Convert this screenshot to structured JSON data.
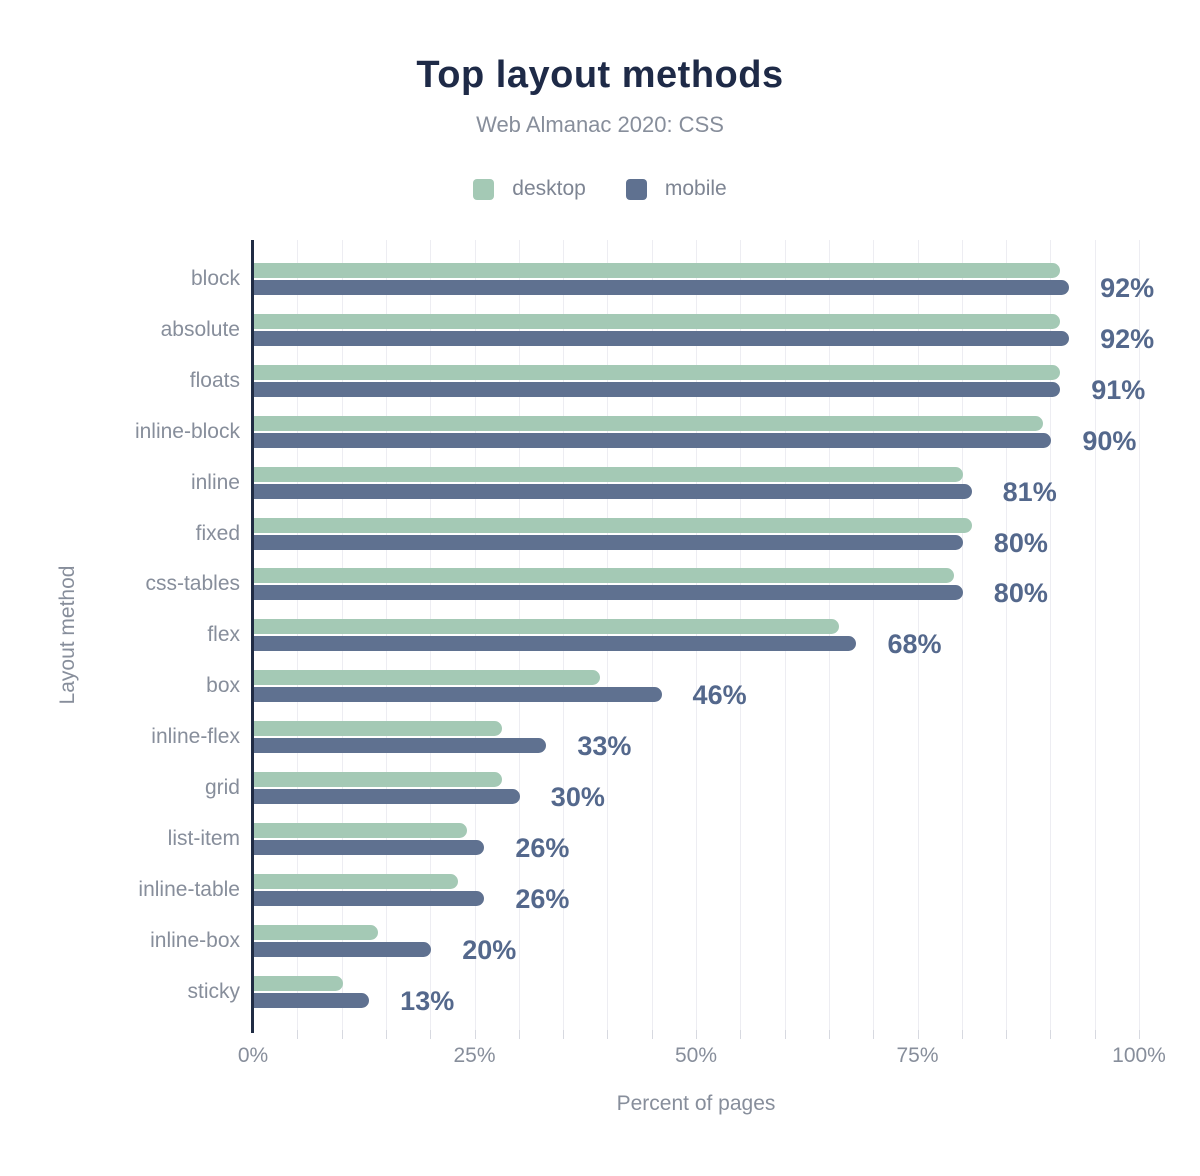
{
  "chart_data": {
    "type": "bar",
    "orientation": "horizontal",
    "title": "Top layout methods",
    "subtitle": "Web Almanac 2020: CSS",
    "xlabel": "Percent of pages",
    "ylabel": "Layout method",
    "categories": [
      "block",
      "absolute",
      "floats",
      "inline-block",
      "inline",
      "fixed",
      "css-tables",
      "flex",
      "box",
      "inline-flex",
      "grid",
      "list-item",
      "inline-table",
      "inline-box",
      "sticky"
    ],
    "series": [
      {
        "name": "desktop",
        "color": "#a4c9b5",
        "values": [
          91,
          91,
          91,
          89,
          80,
          81,
          79,
          66,
          39,
          28,
          28,
          24,
          23,
          14,
          10
        ]
      },
      {
        "name": "mobile",
        "color": "#5f7190",
        "values": [
          92,
          92,
          91,
          90,
          81,
          80,
          80,
          68,
          46,
          33,
          30,
          26,
          26,
          20,
          13
        ]
      }
    ],
    "value_labels": [
      "92%",
      "92%",
      "91%",
      "90%",
      "81%",
      "80%",
      "80%",
      "68%",
      "46%",
      "33%",
      "30%",
      "26%",
      "26%",
      "20%",
      "13%"
    ],
    "x_ticks": [
      "0%",
      "25%",
      "50%",
      "75%",
      "100%"
    ],
    "x_tick_values": [
      0,
      25,
      50,
      75,
      100
    ],
    "xlim": [
      0,
      100
    ],
    "grid": "vertical, minor every 5%",
    "legend_position": "top"
  },
  "colors": {
    "background": "#ffffff",
    "title": "#1e2a47",
    "subtitle": "#878e9b",
    "axis_labels": "#878e9b",
    "value_labels": "#54688c",
    "axis_line": "#202c44",
    "gridline": "#ededf2",
    "desktop_bar": "#a4c9b5",
    "mobile_bar": "#5f7190"
  }
}
